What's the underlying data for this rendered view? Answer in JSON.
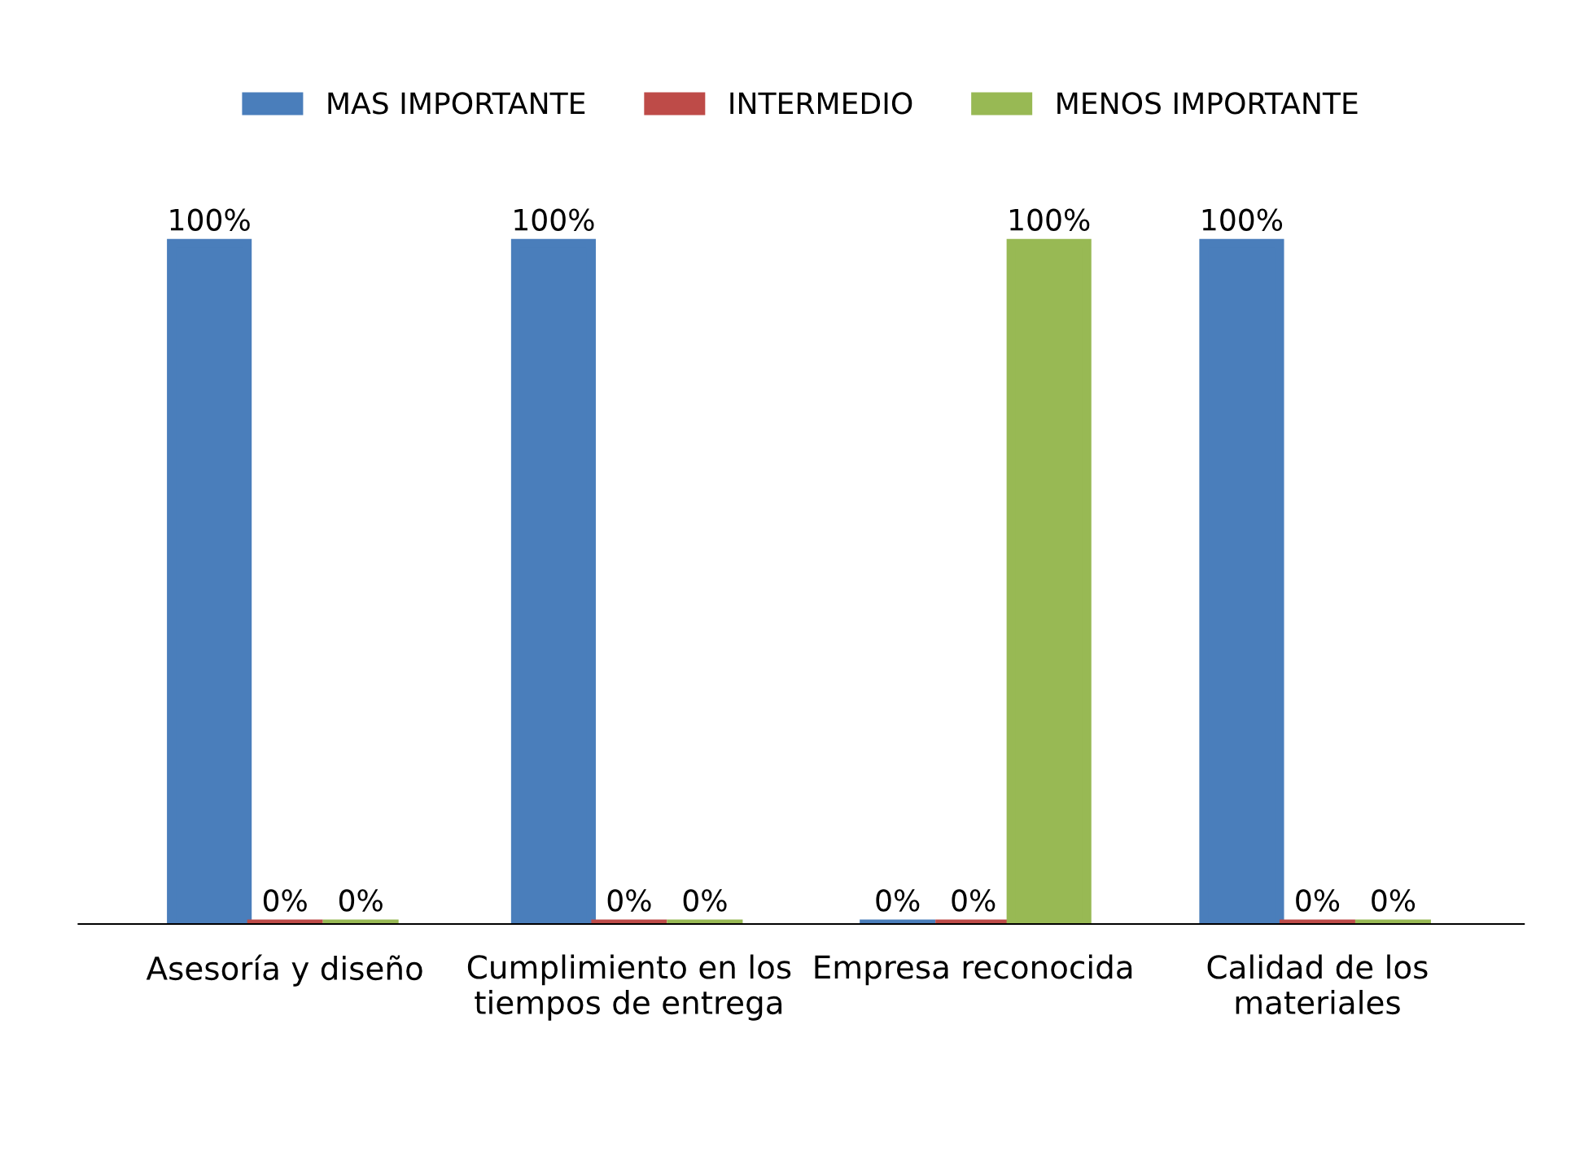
{
  "chart_data": {
    "type": "bar",
    "categories": [
      "Asesoría y diseño",
      "Cumplimiento en los tiempos de entrega",
      "Empresa reconocida",
      "Calidad de los materiales"
    ],
    "series": [
      {
        "name": "MAS IMPORTANTE",
        "color": "#4a7ebb",
        "values": [
          100,
          100,
          0,
          100
        ],
        "value_labels": [
          "100%",
          "100%",
          "0%",
          "100%"
        ]
      },
      {
        "name": "INTERMEDIO",
        "color": "#be4b48",
        "values": [
          0,
          0,
          0,
          0
        ],
        "value_labels": [
          "0%",
          "0%",
          "0%",
          "0%"
        ]
      },
      {
        "name": "MENOS IMPORTANTE",
        "color": "#98b954",
        "values": [
          0,
          0,
          100,
          0
        ],
        "value_labels": [
          "0%",
          "0%",
          "100%",
          "0%"
        ]
      }
    ],
    "legend": "top",
    "grid": false
  }
}
